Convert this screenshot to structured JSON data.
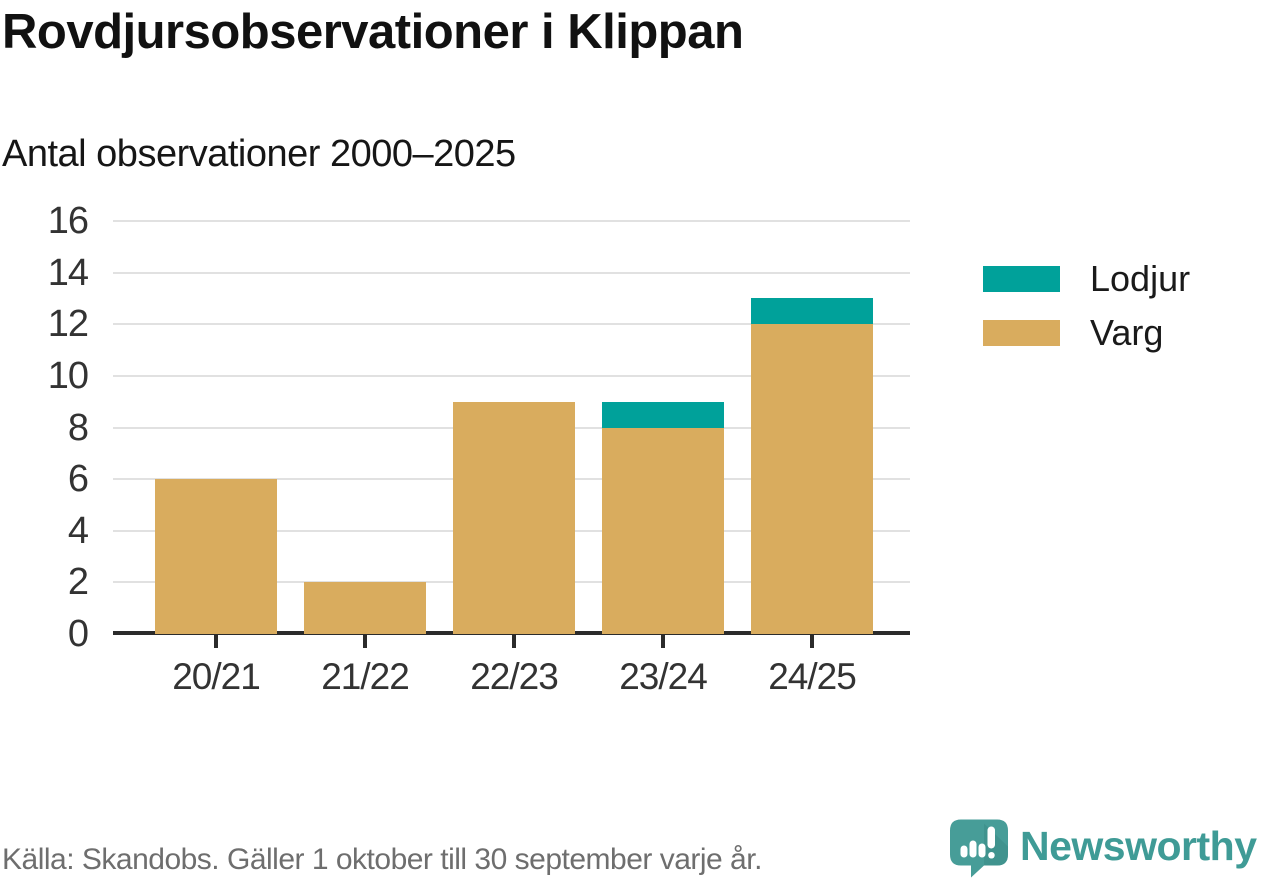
{
  "header": {
    "title": "Rovdjursobservationer i Klippan",
    "subtitle": "Antal observationer 2000–2025"
  },
  "chart_data": {
    "type": "bar",
    "stacked": true,
    "title": "Rovdjursobservationer i Klippan",
    "subtitle": "Antal observationer 2000–2025",
    "categories": [
      "20/21",
      "21/22",
      "22/23",
      "23/24",
      "24/25"
    ],
    "series": [
      {
        "name": "Varg",
        "color": "#d9ac5e",
        "values": [
          6,
          2,
          9,
          8,
          12
        ]
      },
      {
        "name": "Lodjur",
        "color": "#00a19a",
        "values": [
          0,
          0,
          0,
          1,
          1
        ]
      }
    ],
    "totals": [
      6,
      2,
      9,
      9,
      13
    ],
    "xlabel": "",
    "ylabel": "",
    "ylim": [
      0,
      16
    ],
    "yticks": [
      0,
      2,
      4,
      6,
      8,
      10,
      12,
      14,
      16
    ],
    "grid": "horizontal",
    "legend_position": "right"
  },
  "legend": {
    "items": [
      {
        "label": "Lodjur",
        "color": "#00a19a"
      },
      {
        "label": "Varg",
        "color": "#d9ac5e"
      }
    ]
  },
  "footer": {
    "source": "Källa: Skandobs. Gäller 1 oktober till 30 september varje år.",
    "brand": "Newsworthy"
  },
  "colors": {
    "varg": "#d9ac5e",
    "lodjur": "#00a19a",
    "brand_teal": "#3f9b96",
    "gridline": "#e1e1e1",
    "axis": "#2b2b2b",
    "text_dark": "#111111",
    "text_axis": "#333333",
    "text_source": "#6e6e6e"
  }
}
